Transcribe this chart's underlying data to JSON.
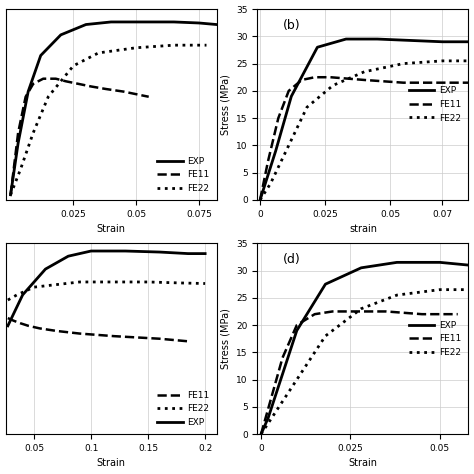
{
  "panels": {
    "a": {
      "label": "",
      "xlabel": "Strain",
      "ylabel": "",
      "xlim": [
        -0.002,
        0.082
      ],
      "ylim": [
        -1,
        36
      ],
      "xticks": [
        0.025,
        0.05,
        0.075
      ],
      "show_yticks": false,
      "legend_order": [
        "EXP",
        "FE11",
        "FE22"
      ],
      "legend_loc": "lower right",
      "show_legend": true,
      "annot": ""
    },
    "b": {
      "label": "(b)",
      "xlabel": "strain",
      "ylabel": "Stress (MPa)",
      "xlim": [
        -0.001,
        0.08
      ],
      "ylim": [
        0,
        35
      ],
      "xticks": [
        0,
        0.025,
        0.05,
        0.07
      ],
      "show_yticks": true,
      "yticks": [
        0,
        5,
        10,
        15,
        20,
        25,
        30,
        35
      ],
      "legend_order": [
        "EXP",
        "FE11",
        "FE22"
      ],
      "legend_loc": "center right",
      "show_legend": true,
      "annot": "(b)"
    },
    "c": {
      "label": "",
      "xlabel": "Strain",
      "ylabel": "",
      "xlim": [
        0.025,
        0.21
      ],
      "ylim": [
        -1,
        36
      ],
      "xticks": [
        0.05,
        0.1,
        0.15,
        0.2
      ],
      "show_yticks": false,
      "legend_order": [
        "FE11",
        "FE22",
        "EXP"
      ],
      "legend_loc": "lower right",
      "show_legend": true,
      "annot": ""
    },
    "d": {
      "label": "(d)",
      "xlabel": "Strain",
      "ylabel": "Stress (MPa)",
      "xlim": [
        -0.001,
        0.058
      ],
      "ylim": [
        0,
        35
      ],
      "xticks": [
        0,
        0.025,
        0.05
      ],
      "show_yticks": true,
      "yticks": [
        0,
        5,
        10,
        15,
        20,
        25,
        30,
        35
      ],
      "legend_order": [
        "EXP",
        "FE11",
        "FE22"
      ],
      "legend_loc": "center right",
      "show_legend": true,
      "annot": "(d)"
    }
  },
  "curves": {
    "a": {
      "EXP": {
        "x": [
          0,
          0.003,
          0.007,
          0.012,
          0.02,
          0.03,
          0.04,
          0.055,
          0.065,
          0.075,
          0.082
        ],
        "y": [
          0,
          10,
          20,
          27,
          31,
          33,
          33.5,
          33.5,
          33.5,
          33.3,
          33.0
        ],
        "style": "-",
        "color": "black",
        "lw": 2.0
      },
      "FE11": {
        "x": [
          0,
          0.003,
          0.006,
          0.009,
          0.013,
          0.018,
          0.022,
          0.027,
          0.032,
          0.038,
          0.045,
          0.055
        ],
        "y": [
          0,
          12,
          19,
          21.5,
          22.5,
          22.5,
          22,
          21.5,
          21,
          20.5,
          20,
          19
        ],
        "style": "--",
        "color": "black",
        "lw": 1.8
      },
      "FE22": {
        "x": [
          0,
          0.004,
          0.009,
          0.015,
          0.025,
          0.035,
          0.05,
          0.065,
          0.078
        ],
        "y": [
          0,
          5,
          12,
          19,
          25,
          27.5,
          28.5,
          29,
          29
        ],
        "style": ":",
        "color": "black",
        "lw": 2.0
      }
    },
    "b": {
      "EXP": {
        "x": [
          0,
          0.002,
          0.006,
          0.012,
          0.022,
          0.033,
          0.045,
          0.055,
          0.07,
          0.08
        ],
        "y": [
          0,
          3,
          9,
          19,
          28,
          29.5,
          29.5,
          29.3,
          29.0,
          29.0
        ],
        "style": "-",
        "color": "black",
        "lw": 2.0
      },
      "FE11": {
        "x": [
          0,
          0.003,
          0.007,
          0.011,
          0.016,
          0.021,
          0.027,
          0.04,
          0.055,
          0.07,
          0.08
        ],
        "y": [
          0,
          7,
          15,
          20,
          22,
          22.5,
          22.5,
          22,
          21.5,
          21.5,
          21.5
        ],
        "style": "--",
        "color": "black",
        "lw": 1.8
      },
      "FE22": {
        "x": [
          0,
          0.004,
          0.009,
          0.018,
          0.028,
          0.04,
          0.055,
          0.07,
          0.08
        ],
        "y": [
          0,
          3,
          8,
          17,
          21,
          23.5,
          25,
          25.5,
          25.5
        ],
        "style": ":",
        "color": "black",
        "lw": 2.0
      }
    },
    "c": {
      "EXP": {
        "x": [
          0.027,
          0.04,
          0.06,
          0.08,
          0.1,
          0.13,
          0.16,
          0.185,
          0.2
        ],
        "y": [
          20,
          26,
          31,
          33.5,
          34.5,
          34.5,
          34.3,
          34.0,
          34.0
        ],
        "style": "-",
        "color": "black",
        "lw": 2.0
      },
      "FE11": {
        "x": [
          0.027,
          0.032,
          0.038,
          0.045,
          0.055,
          0.07,
          0.09,
          0.12,
          0.16,
          0.185
        ],
        "y": [
          21.5,
          21,
          20.5,
          20,
          19.5,
          19,
          18.5,
          18,
          17.5,
          17
        ],
        "style": "--",
        "color": "black",
        "lw": 1.8
      },
      "FE22": {
        "x": [
          0.027,
          0.035,
          0.05,
          0.07,
          0.09,
          0.12,
          0.15,
          0.18,
          0.2
        ],
        "y": [
          25,
          26,
          27.5,
          28,
          28.5,
          28.5,
          28.5,
          28.3,
          28.2
        ],
        "style": ":",
        "color": "black",
        "lw": 2.0
      }
    },
    "d": {
      "EXP": {
        "x": [
          0,
          0.002,
          0.005,
          0.01,
          0.018,
          0.028,
          0.038,
          0.05,
          0.058
        ],
        "y": [
          0,
          3,
          9,
          19,
          27.5,
          30.5,
          31.5,
          31.5,
          31.0
        ],
        "style": "-",
        "color": "black",
        "lw": 2.0
      },
      "FE11": {
        "x": [
          0,
          0.003,
          0.006,
          0.01,
          0.015,
          0.02,
          0.026,
          0.035,
          0.045,
          0.055
        ],
        "y": [
          0,
          7,
          14,
          20,
          22,
          22.5,
          22.5,
          22.5,
          22,
          22
        ],
        "style": "--",
        "color": "black",
        "lw": 1.8
      },
      "FE22": {
        "x": [
          0,
          0.004,
          0.009,
          0.018,
          0.028,
          0.038,
          0.05,
          0.058
        ],
        "y": [
          0,
          4,
          9,
          18,
          23,
          25.5,
          26.5,
          26.5
        ],
        "style": ":",
        "color": "black",
        "lw": 2.0
      }
    }
  },
  "figure_bg": "#ffffff",
  "grid_color": "#cccccc"
}
